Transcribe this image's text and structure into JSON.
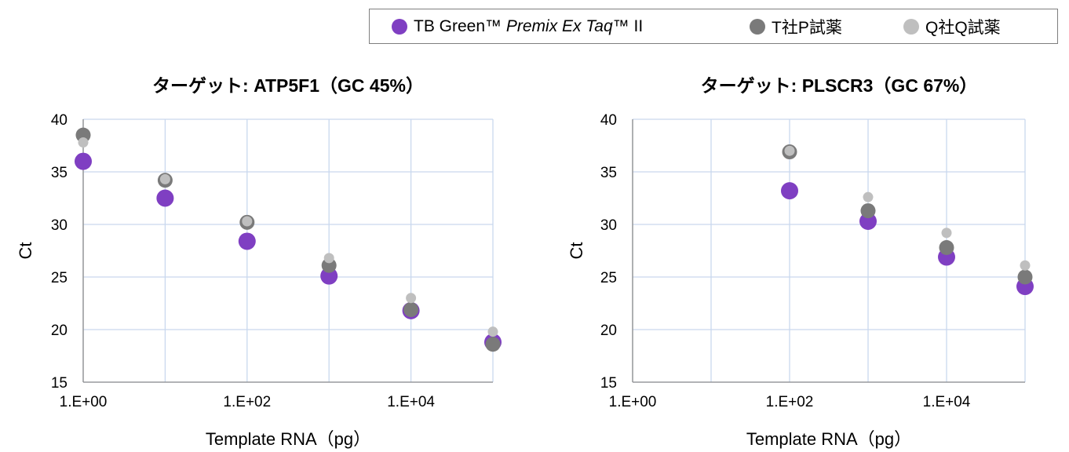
{
  "legend": {
    "items": [
      {
        "name_prefix": "TB Green™ ",
        "name_italic": "Premix Ex Taq",
        "name_suffix": "™ II",
        "color": "#7f3fc2"
      },
      {
        "name_prefix": "T社P試薬",
        "name_italic": "",
        "name_suffix": "",
        "color": "#7a7a7a"
      },
      {
        "name_prefix": "Q社Q試薬",
        "name_italic": "",
        "name_suffix": "",
        "color": "#bfbfbf"
      }
    ]
  },
  "chart_data": [
    {
      "type": "scatter",
      "title": "ターゲット: ATP5F1（GC 45%）",
      "xlabel": "Template RNA（pg）",
      "ylabel": "Ct",
      "x_scale": "log10",
      "xlim": [
        1,
        100000
      ],
      "ylim": [
        15,
        40
      ],
      "x_ticks": [
        "1.E+00",
        "1.E+02",
        "1.E+04"
      ],
      "y_ticks": [
        "15",
        "20",
        "25",
        "30",
        "35",
        "40"
      ],
      "grid": true,
      "series": [
        {
          "name": "TB Green™ Premix Ex Taq™ II",
          "points": [
            [
              1,
              36.0
            ],
            [
              10,
              32.5
            ],
            [
              100,
              28.4
            ],
            [
              1000,
              25.1
            ],
            [
              10000,
              21.8
            ],
            [
              100000,
              18.8
            ]
          ]
        },
        {
          "name": "T社P試薬",
          "points": [
            [
              1,
              38.5
            ],
            [
              10,
              34.2
            ],
            [
              100,
              30.2
            ],
            [
              1000,
              26.1
            ],
            [
              10000,
              21.9
            ],
            [
              100000,
              18.6
            ]
          ]
        },
        {
          "name": "Q社Q試薬",
          "points": [
            [
              1,
              37.8
            ],
            [
              10,
              34.3
            ],
            [
              100,
              30.3
            ],
            [
              1000,
              26.8
            ],
            [
              10000,
              23.0
            ],
            [
              100000,
              19.8
            ]
          ]
        }
      ]
    },
    {
      "type": "scatter",
      "title": "ターゲット: PLSCR3（GC 67%）",
      "xlabel": "Template RNA（pg）",
      "ylabel": "Ct",
      "x_scale": "log10",
      "xlim": [
        1,
        100000
      ],
      "ylim": [
        15,
        40
      ],
      "x_ticks": [
        "1.E+00",
        "1.E+02",
        "1.E+04"
      ],
      "y_ticks": [
        "15",
        "20",
        "25",
        "30",
        "35",
        "40"
      ],
      "grid": true,
      "series": [
        {
          "name": "TB Green™ Premix Ex Taq™ II",
          "points": [
            [
              100,
              33.2
            ],
            [
              1000,
              30.3
            ],
            [
              10000,
              26.9
            ],
            [
              100000,
              24.1
            ]
          ]
        },
        {
          "name": "T社P試薬",
          "points": [
            [
              100,
              36.9
            ],
            [
              1000,
              31.3
            ],
            [
              10000,
              27.8
            ],
            [
              100000,
              25.0
            ]
          ]
        },
        {
          "name": "Q社Q試薬",
          "points": [
            [
              100,
              37.0
            ],
            [
              1000,
              32.6
            ],
            [
              10000,
              29.2
            ],
            [
              100000,
              26.1
            ]
          ]
        }
      ]
    }
  ]
}
